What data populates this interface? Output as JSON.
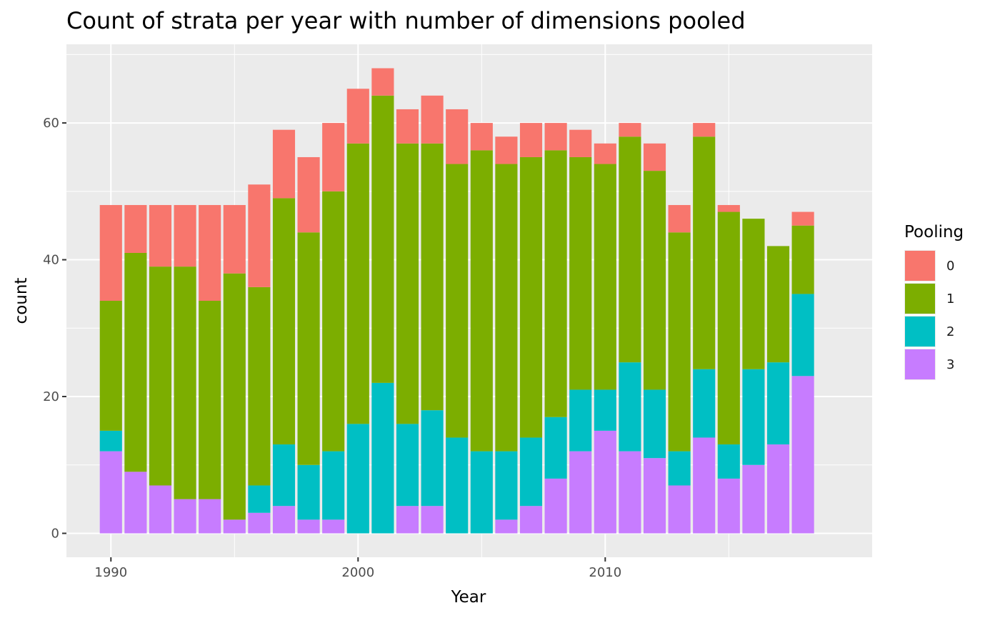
{
  "chart_data": {
    "type": "bar",
    "stacked": true,
    "title": "Count of strata per year with number of dimensions pooled",
    "xlabel": "Year",
    "ylabel": "count",
    "x": [
      1990,
      1991,
      1992,
      1993,
      1994,
      1995,
      1996,
      1997,
      1998,
      1999,
      2000,
      2001,
      2002,
      2003,
      2004,
      2005,
      2006,
      2007,
      2008,
      2009,
      2010,
      2011,
      2012,
      2013,
      2014,
      2015,
      2016,
      2017,
      2018
    ],
    "xlim": [
      1988.2,
      2020.8
    ],
    "ylim": [
      -3.5,
      71.5
    ],
    "xticks": [
      1990,
      2000,
      2010
    ],
    "yticks": [
      0,
      20,
      40,
      60
    ],
    "grid": true,
    "legend": {
      "title": "Pooling",
      "position": "right"
    },
    "series": [
      {
        "name": "3",
        "color": "#C77CFF",
        "values": [
          12,
          9,
          7,
          5,
          5,
          2,
          3,
          4,
          2,
          2,
          0,
          0,
          4,
          4,
          0,
          0,
          2,
          4,
          8,
          12,
          15,
          12,
          11,
          7,
          14,
          8,
          10,
          13,
          23
        ]
      },
      {
        "name": "2",
        "color": "#00BFC4",
        "values": [
          3,
          0,
          0,
          0,
          0,
          0,
          4,
          9,
          8,
          10,
          16,
          22,
          12,
          14,
          14,
          12,
          10,
          10,
          9,
          9,
          6,
          13,
          10,
          5,
          10,
          5,
          14,
          12,
          12
        ]
      },
      {
        "name": "1",
        "color": "#7CAE00",
        "values": [
          19,
          32,
          32,
          34,
          29,
          36,
          29,
          36,
          34,
          38,
          41,
          42,
          41,
          39,
          40,
          44,
          42,
          41,
          39,
          34,
          33,
          33,
          32,
          32,
          34,
          34,
          22,
          17,
          10
        ]
      },
      {
        "name": "0",
        "color": "#F8766D",
        "values": [
          14,
          7,
          9,
          9,
          14,
          10,
          15,
          10,
          11,
          10,
          8,
          4,
          5,
          7,
          8,
          4,
          4,
          5,
          4,
          4,
          3,
          2,
          4,
          4,
          2,
          1,
          0,
          0,
          2
        ]
      }
    ]
  }
}
